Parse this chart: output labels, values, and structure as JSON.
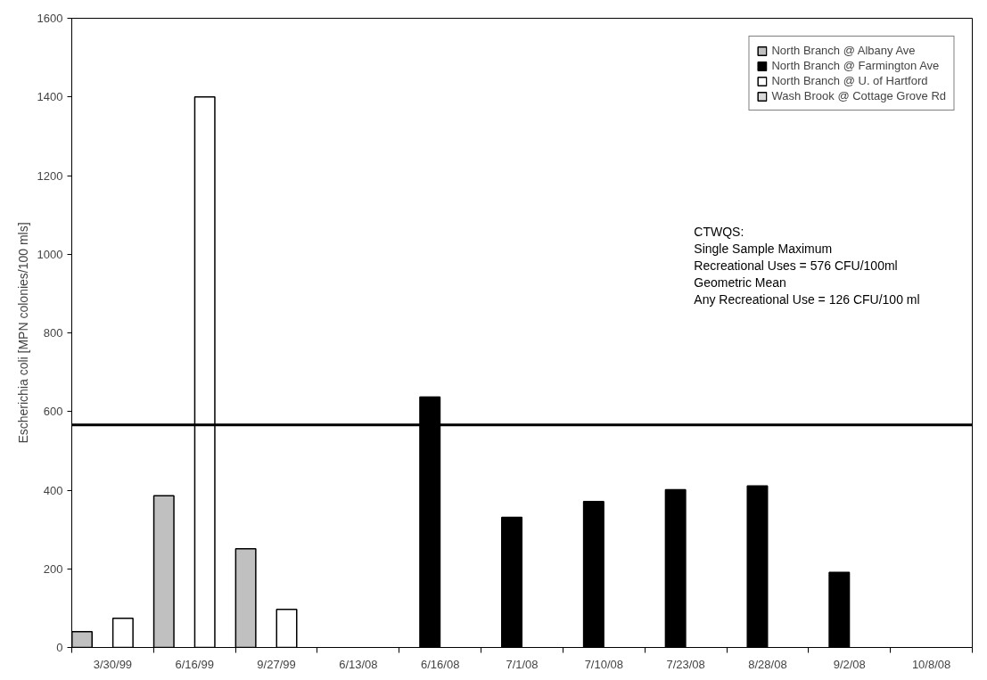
{
  "chart_data": {
    "type": "bar",
    "ylabel": "Escherichia coli [MPN colonies/100 mls]",
    "categories": [
      "3/30/99",
      "6/16/99",
      "9/27/99",
      "6/13/08",
      "6/16/08",
      "7/1/08",
      "7/10/08",
      "7/23/08",
      "8/28/08",
      "9/2/08",
      "10/8/08"
    ],
    "series": [
      {
        "name": "North Branch @ Albany Ave",
        "color": "#c0c0c0",
        "values": [
          40,
          386,
          251,
          null,
          null,
          null,
          null,
          null,
          null,
          null,
          null
        ]
      },
      {
        "name": "North Branch @ Farmington Ave",
        "color": "#000000",
        "values": [
          null,
          null,
          null,
          null,
          637,
          331,
          371,
          401,
          411,
          191,
          null
        ]
      },
      {
        "name": "North Branch @ U. of Hartford",
        "color": "#ffffff",
        "values": [
          74,
          1400,
          97,
          null,
          null,
          null,
          null,
          null,
          null,
          null,
          null
        ]
      },
      {
        "name": "Wash Brook @ Cottage Grove Rd",
        "color": "#d9d9d9",
        "values": [
          null,
          null,
          null,
          null,
          null,
          null,
          null,
          null,
          null,
          null,
          null
        ]
      }
    ],
    "ylim": [
      0,
      1600
    ],
    "yticks": [
      0,
      200,
      400,
      600,
      800,
      1000,
      1200,
      1400,
      1600
    ],
    "ref_lines": [
      {
        "axis": "y",
        "value": 566,
        "color": "#000000"
      }
    ],
    "annotations": [
      "CTWQS:",
      "Single Sample Maximum",
      "Recreational Uses = 576 CFU/100ml",
      "Geometric Mean",
      "Any Recreational Use = 126 CFU/100 ml"
    ],
    "legend": "top right",
    "grid": false
  }
}
